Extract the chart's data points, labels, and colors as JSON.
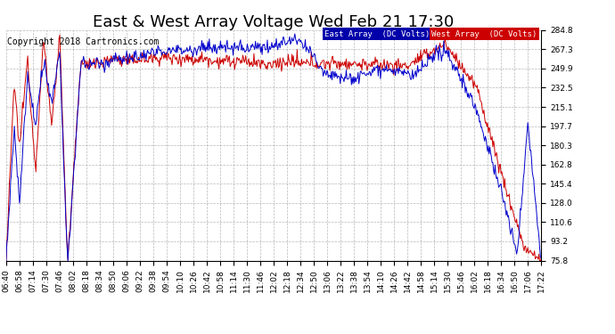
{
  "title": "East & West Array Voltage Wed Feb 21 17:30",
  "copyright": "Copyright 2018 Cartronics.com",
  "legend_east": "East Array  (DC Volts)",
  "legend_west": "West Array  (DC Volts)",
  "east_color": "#0000cc",
  "west_color": "#cc0000",
  "east_legend_bg": "#0000aa",
  "west_legend_bg": "#cc0000",
  "bg_color": "#ffffff",
  "plot_bg_color": "#ffffff",
  "grid_color": "#999999",
  "ymin": 75.8,
  "ymax": 284.8,
  "yticks": [
    284.8,
    267.3,
    249.9,
    232.5,
    215.1,
    197.7,
    180.3,
    162.8,
    145.4,
    128.0,
    110.6,
    93.2,
    75.8
  ],
  "xtick_labels": [
    "06:40",
    "06:58",
    "07:14",
    "07:30",
    "07:46",
    "08:02",
    "08:18",
    "08:34",
    "08:50",
    "09:06",
    "09:22",
    "09:38",
    "09:54",
    "10:10",
    "10:26",
    "10:42",
    "10:58",
    "11:14",
    "11:30",
    "11:46",
    "12:02",
    "12:18",
    "12:34",
    "12:50",
    "13:06",
    "13:22",
    "13:38",
    "13:54",
    "14:10",
    "14:26",
    "14:42",
    "14:58",
    "15:14",
    "15:30",
    "15:46",
    "16:02",
    "16:18",
    "16:34",
    "16:50",
    "17:06",
    "17:22"
  ],
  "title_fontsize": 13,
  "tick_fontsize": 6.5,
  "copyright_fontsize": 7
}
